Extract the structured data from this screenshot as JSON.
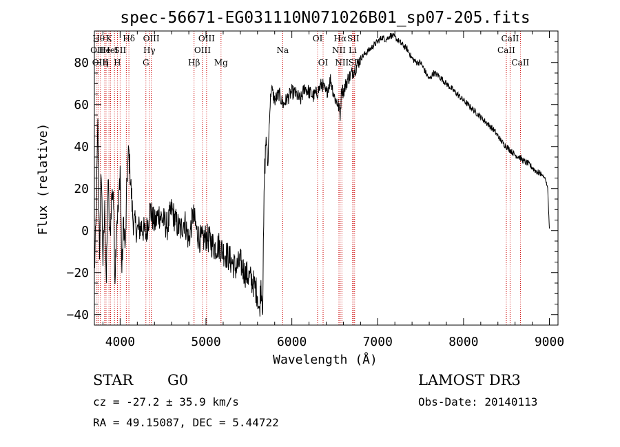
{
  "chart_data": {
    "type": "line",
    "title": "spec-56671-EG031110N071026B01_sp07-205.fits",
    "xlabel": "Wavelength (Å)",
    "ylabel": "Flux (relative)",
    "xlim": [
      3700,
      9100
    ],
    "ylim": [
      -45,
      95
    ],
    "x_ticks": [
      4000,
      5000,
      6000,
      7000,
      8000,
      9000
    ],
    "y_ticks": [
      -40,
      -20,
      0,
      20,
      40,
      60,
      80
    ],
    "series": [
      {
        "x": [
          3700,
          3720,
          3740,
          3760,
          3780,
          3800,
          3820,
          3840,
          3860,
          3880,
          3900,
          3920,
          3940,
          3960,
          3980,
          4000,
          4020,
          4040,
          4060,
          4080,
          4100,
          4150,
          4200,
          4250,
          4300,
          4350,
          4400,
          4450,
          4500,
          4550,
          4600,
          4650,
          4700,
          4750,
          4800,
          4850,
          4900,
          4950,
          5000,
          5050,
          5100,
          5150,
          5200,
          5250,
          5300,
          5350,
          5400,
          5450,
          5500,
          5550,
          5600,
          5620,
          5640,
          5660,
          5680,
          5700,
          5720,
          5740,
          5760,
          5800,
          5850,
          5900,
          5950,
          6000,
          6050,
          6100,
          6150,
          6200,
          6250,
          6300,
          6350,
          6400,
          6450,
          6500,
          6540,
          6563,
          6580,
          6600,
          6650,
          6700,
          6750,
          6800,
          6850,
          6900,
          6950,
          7000,
          7050,
          7100,
          7150,
          7200,
          7250,
          7300,
          7350,
          7400,
          7450,
          7500,
          7550,
          7600,
          7650,
          7700,
          7750,
          7800,
          7850,
          7900,
          7950,
          8000,
          8050,
          8100,
          8150,
          8200,
          8250,
          8300,
          8350,
          8400,
          8450,
          8500,
          8550,
          8600,
          8650,
          8700,
          8750,
          8800,
          8850,
          8900,
          8950,
          8980,
          8990,
          9000
        ],
        "y": [
          -20,
          5,
          50,
          -10,
          30,
          -15,
          10,
          -25,
          25,
          -5,
          15,
          20,
          -22,
          5,
          10,
          30,
          -20,
          5,
          -10,
          25,
          38,
          5,
          0,
          2,
          -2,
          10,
          3,
          8,
          5,
          2,
          10,
          4,
          0,
          5,
          -5,
          8,
          -2,
          -5,
          -3,
          -5,
          -8,
          -7,
          -10,
          -12,
          -15,
          -18,
          -15,
          -20,
          -22,
          -25,
          -30,
          -40,
          -25,
          -35,
          25,
          45,
          30,
          55,
          68,
          62,
          65,
          60,
          63,
          66,
          65,
          62,
          68,
          66,
          64,
          66,
          70,
          65,
          72,
          63,
          60,
          55,
          68,
          66,
          72,
          75,
          78,
          82,
          84,
          86,
          88,
          90,
          92,
          91,
          93,
          92,
          90,
          88,
          86,
          82,
          80,
          80,
          76,
          72,
          75,
          74,
          72,
          70,
          68,
          66,
          64,
          62,
          60,
          58,
          56,
          54,
          52,
          50,
          48,
          45,
          42,
          40,
          38,
          36,
          35,
          33,
          32,
          30,
          28,
          27,
          25,
          20,
          10,
          1
        ]
      }
    ],
    "line_marks": [
      {
        "x": 3750,
        "label": "Hθ",
        "row": 0
      },
      {
        "x": 3730,
        "label": "OII",
        "row": 1
      },
      {
        "x": 3770,
        "label": "OIII",
        "row": 2
      },
      {
        "x": 3820,
        "label": "He",
        "row": 1
      },
      {
        "x": 3836,
        "label": "η",
        "row": 2
      },
      {
        "x": 3870,
        "label": "K",
        "row": 0
      },
      {
        "x": 3889,
        "label": "HeI",
        "row": 1
      },
      {
        "x": 3934,
        "label": "",
        "row": 0
      },
      {
        "x": 3968,
        "label": "H",
        "row": 2
      },
      {
        "x": 4000,
        "label": "SII",
        "row": 1
      },
      {
        "x": 4072,
        "label": "",
        "row": 1
      },
      {
        "x": 4102,
        "label": "Hδ",
        "row": 0
      },
      {
        "x": 4300,
        "label": "G",
        "row": 2
      },
      {
        "x": 4340,
        "label": "Hγ",
        "row": 1
      },
      {
        "x": 4363,
        "label": "OIII",
        "row": 0
      },
      {
        "x": 4861,
        "label": "Hβ",
        "row": 2
      },
      {
        "x": 4959,
        "label": "OIII",
        "row": 1
      },
      {
        "x": 5007,
        "label": "OIII",
        "row": 0
      },
      {
        "x": 5175,
        "label": "Mg",
        "row": 2
      },
      {
        "x": 5893,
        "label": "Na",
        "row": 1
      },
      {
        "x": 6300,
        "label": "OI",
        "row": 0
      },
      {
        "x": 6364,
        "label": "OI",
        "row": 2
      },
      {
        "x": 6548,
        "label": "NII",
        "row": 1
      },
      {
        "x": 6563,
        "label": "Hα",
        "row": 0
      },
      {
        "x": 6583,
        "label": "NII",
        "row": 2
      },
      {
        "x": 6708,
        "label": "Li",
        "row": 1
      },
      {
        "x": 6716,
        "label": "SII",
        "row": 0
      },
      {
        "x": 6731,
        "label": "SII",
        "row": 2
      },
      {
        "x": 8498,
        "label": "CaII",
        "row": 1
      },
      {
        "x": 8542,
        "label": "CaII",
        "row": 0
      },
      {
        "x": 8662,
        "label": "CaII",
        "row": 2
      }
    ],
    "colors": {
      "spectrum": "#000000",
      "line_marks": "#cc0000",
      "axes": "#000000"
    }
  },
  "info": {
    "class": "STAR",
    "subclass": "G0",
    "survey": "LAMOST DR3",
    "cz": "cz = -27.2 ± 35.9 km/s",
    "obs_date": "Obs-Date: 20140113",
    "radec": "RA =  49.15087, DEC =   5.44722"
  }
}
